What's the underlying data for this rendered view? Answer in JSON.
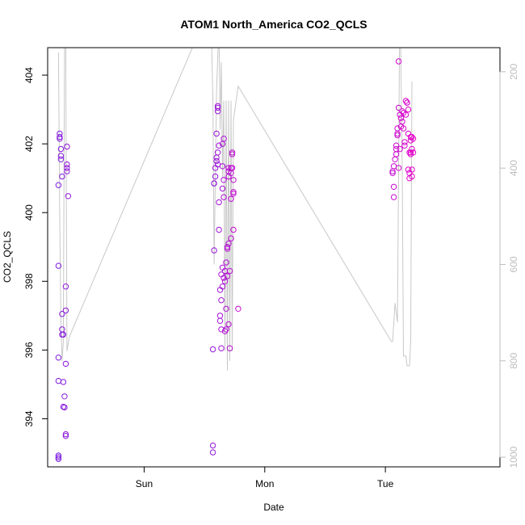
{
  "chart_data": {
    "type": "scatter",
    "title": "ATOM1 North_America CO2_QCLS",
    "xlabel": "Date",
    "ylabel": "CO2_QCLS",
    "x_ticks": [
      {
        "x": 1.0,
        "label": "Sun"
      },
      {
        "x": 2.0,
        "label": "Mon"
      },
      {
        "x": 3.0,
        "label": "Tue"
      }
    ],
    "xlim": [
      0.2,
      3.95
    ],
    "ylim": [
      392.6,
      404.8
    ],
    "y_ticks": [
      394,
      396,
      398,
      400,
      402,
      404
    ],
    "right_axis": {
      "ylim": [
        1020,
        150
      ],
      "ticks": [
        200,
        400,
        600,
        800,
        1000
      ],
      "color": "#bdbdbd"
    },
    "grid": false,
    "series": [
      {
        "kind": "points",
        "color_start": "#7b1fe0",
        "color_end": "#e600c8",
        "points": [
          [
            0.29,
            392.83
          ],
          [
            0.29,
            392.93
          ],
          [
            0.29,
            392.88
          ],
          [
            0.29,
            395.1
          ],
          [
            0.29,
            395.78
          ],
          [
            0.29,
            398.45
          ],
          [
            0.29,
            400.8
          ],
          [
            0.3,
            402.2
          ],
          [
            0.3,
            402.3
          ],
          [
            0.3,
            402.15
          ],
          [
            0.31,
            401.55
          ],
          [
            0.31,
            401.65
          ],
          [
            0.31,
            401.85
          ],
          [
            0.32,
            401.05
          ],
          [
            0.32,
            397.05
          ],
          [
            0.32,
            396.45
          ],
          [
            0.32,
            396.6
          ],
          [
            0.33,
            396.45
          ],
          [
            0.33,
            395.07
          ],
          [
            0.33,
            394.35
          ],
          [
            0.34,
            394.33
          ],
          [
            0.34,
            394.65
          ],
          [
            0.35,
            393.55
          ],
          [
            0.35,
            393.5
          ],
          [
            0.35,
            395.6
          ],
          [
            0.35,
            397.85
          ],
          [
            0.35,
            397.15
          ],
          [
            0.36,
            401.4
          ],
          [
            0.36,
            401.3
          ],
          [
            0.36,
            401.2
          ],
          [
            0.36,
            401.92
          ],
          [
            0.37,
            400.48
          ],
          [
            1.57,
            393.22
          ],
          [
            1.57,
            393.02
          ],
          [
            1.57,
            396.02
          ],
          [
            1.58,
            398.9
          ],
          [
            1.58,
            400.85
          ],
          [
            1.58,
            400.85
          ],
          [
            1.59,
            401.3
          ],
          [
            1.59,
            401.05
          ],
          [
            1.6,
            401.5
          ],
          [
            1.6,
            401.6
          ],
          [
            1.6,
            402.3
          ],
          [
            1.61,
            401.75
          ],
          [
            1.61,
            401.4
          ],
          [
            1.61,
            403.05
          ],
          [
            1.61,
            403.1
          ],
          [
            1.61,
            402.95
          ],
          [
            1.62,
            401.95
          ],
          [
            1.62,
            400.3
          ],
          [
            1.62,
            399.5
          ],
          [
            1.63,
            397.75
          ],
          [
            1.63,
            397.0
          ],
          [
            1.63,
            396.85
          ],
          [
            1.64,
            396.6
          ],
          [
            1.64,
            396.05
          ],
          [
            1.64,
            397.45
          ],
          [
            1.64,
            398.2
          ],
          [
            1.65,
            397.85
          ],
          [
            1.65,
            398.4
          ],
          [
            1.65,
            400.7
          ],
          [
            1.65,
            401.35
          ],
          [
            1.65,
            402.0
          ],
          [
            1.66,
            402.15
          ],
          [
            1.66,
            400.95
          ],
          [
            1.66,
            400.45
          ],
          [
            1.66,
            398.1
          ],
          [
            1.67,
            398.3
          ],
          [
            1.67,
            398.0
          ],
          [
            1.67,
            396.55
          ],
          [
            1.68,
            396.6
          ],
          [
            1.68,
            397.2
          ],
          [
            1.68,
            398.55
          ],
          [
            1.69,
            398.15
          ],
          [
            1.69,
            399.0
          ],
          [
            1.69,
            398.95
          ],
          [
            1.7,
            399.1
          ],
          [
            1.7,
            401.05
          ],
          [
            1.7,
            401.3
          ],
          [
            1.7,
            401.2
          ],
          [
            1.7,
            396.75
          ],
          [
            1.71,
            396.05
          ],
          [
            1.71,
            398.3
          ],
          [
            1.72,
            399.25
          ],
          [
            1.72,
            400.4
          ],
          [
            1.72,
            401.15
          ],
          [
            1.72,
            401.3
          ],
          [
            1.73,
            401.7
          ],
          [
            1.73,
            401.75
          ],
          [
            1.73,
            401.3
          ],
          [
            1.74,
            400.95
          ],
          [
            1.74,
            400.6
          ],
          [
            1.74,
            400.55
          ],
          [
            1.74,
            399.5
          ],
          [
            1.78,
            397.2
          ],
          [
            3.06,
            401.15
          ],
          [
            3.06,
            401.2
          ],
          [
            3.07,
            401.35
          ],
          [
            3.07,
            400.45
          ],
          [
            3.07,
            400.75
          ],
          [
            3.08,
            401.55
          ],
          [
            3.09,
            401.7
          ],
          [
            3.09,
            401.95
          ],
          [
            3.09,
            401.85
          ],
          [
            3.1,
            402.3
          ],
          [
            3.1,
            402.45
          ],
          [
            3.1,
            402.25
          ],
          [
            3.11,
            403.05
          ],
          [
            3.11,
            404.4
          ],
          [
            3.11,
            401.3
          ],
          [
            3.12,
            401.85
          ],
          [
            3.12,
            402.85
          ],
          [
            3.13,
            402.5
          ],
          [
            3.13,
            402.75
          ],
          [
            3.14,
            402.95
          ],
          [
            3.14,
            402.65
          ],
          [
            3.15,
            402.9
          ],
          [
            3.15,
            402.45
          ],
          [
            3.16,
            401.95
          ],
          [
            3.16,
            402.05
          ],
          [
            3.17,
            403.25
          ],
          [
            3.17,
            402.85
          ],
          [
            3.18,
            403.2
          ],
          [
            3.18,
            403.2
          ],
          [
            3.19,
            403.0
          ],
          [
            3.19,
            402.3
          ],
          [
            3.19,
            401.25
          ],
          [
            3.2,
            401.15
          ],
          [
            3.2,
            401.0
          ],
          [
            3.2,
            401.75
          ],
          [
            3.21,
            401.75
          ],
          [
            3.21,
            401.7
          ],
          [
            3.21,
            402.1
          ],
          [
            3.21,
            402.2
          ],
          [
            3.22,
            401.85
          ],
          [
            3.22,
            401.25
          ],
          [
            3.22,
            401.05
          ],
          [
            3.22,
            402.2
          ],
          [
            3.23,
            401.75
          ],
          [
            3.23,
            402.15
          ]
        ]
      },
      {
        "kind": "line",
        "color": "#c8c8c8",
        "axis": "right",
        "points": [
          [
            0.29,
            160
          ],
          [
            0.3,
            490
          ],
          [
            0.31,
            720
          ],
          [
            0.32,
            800
          ],
          [
            0.33,
            760
          ],
          [
            0.34,
            150
          ],
          [
            0.35,
            150
          ],
          [
            0.36,
            780
          ],
          [
            0.38,
            750
          ],
          [
            1.4,
            150
          ],
          [
            1.56,
            150
          ],
          [
            1.57,
            260
          ],
          [
            1.58,
            600
          ],
          [
            1.6,
            240
          ],
          [
            1.62,
            100
          ],
          [
            1.63,
            320
          ],
          [
            1.64,
            180
          ],
          [
            1.65,
            420
          ],
          [
            1.66,
            260
          ],
          [
            1.67,
            780
          ],
          [
            1.68,
            260
          ],
          [
            1.69,
            820
          ],
          [
            1.7,
            260
          ],
          [
            1.71,
            800
          ],
          [
            1.72,
            260
          ],
          [
            1.73,
            780
          ],
          [
            1.74,
            300
          ],
          [
            1.78,
            230
          ],
          [
            3.05,
            760
          ],
          [
            3.06,
            760
          ],
          [
            3.08,
            680
          ],
          [
            3.1,
            720
          ],
          [
            3.12,
            40
          ],
          [
            3.13,
            200
          ],
          [
            3.14,
            400
          ],
          [
            3.15,
            790
          ],
          [
            3.17,
            790
          ],
          [
            3.18,
            810
          ],
          [
            3.2,
            810
          ],
          [
            3.21,
            760
          ],
          [
            3.22,
            220
          ]
        ]
      }
    ]
  }
}
